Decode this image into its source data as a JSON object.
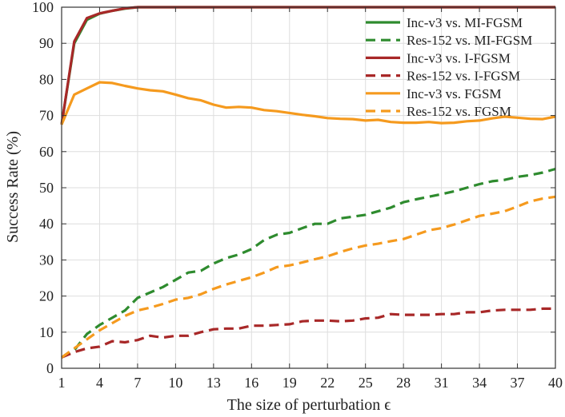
{
  "chart_data": {
    "type": "line",
    "xlabel": "The size of perturbation ϵ",
    "ylabel": "Success Rate (%)",
    "xlim": [
      1,
      40
    ],
    "ylim": [
      0,
      100
    ],
    "xticks": [
      1,
      4,
      7,
      10,
      13,
      16,
      19,
      22,
      25,
      28,
      31,
      34,
      37,
      40
    ],
    "yticks": [
      0,
      10,
      20,
      30,
      40,
      50,
      60,
      70,
      80,
      90,
      100
    ],
    "grid": true,
    "legend_position": "top-right",
    "x": [
      1,
      2,
      3,
      4,
      5,
      6,
      7,
      8,
      9,
      10,
      11,
      12,
      13,
      14,
      15,
      16,
      17,
      18,
      19,
      20,
      21,
      22,
      23,
      24,
      25,
      26,
      27,
      28,
      29,
      30,
      31,
      32,
      33,
      34,
      35,
      36,
      37,
      38,
      39,
      40
    ],
    "series": [
      {
        "name": "Inc-v3 vs. MI-FGSM",
        "color": "#2e8b2e",
        "dash": "solid",
        "values": [
          67.5,
          90,
          96.5,
          98.2,
          99,
          99.6,
          100,
          100,
          100,
          100,
          100,
          100,
          100,
          100,
          100,
          100,
          100,
          100,
          100,
          100,
          100,
          100,
          100,
          100,
          100,
          100,
          100,
          100,
          100,
          100,
          100,
          100,
          100,
          100,
          100,
          100,
          100,
          100,
          100,
          100
        ]
      },
      {
        "name": "Res-152 vs. MI-FGSM",
        "color": "#2e8b2e",
        "dash": "dashed",
        "values": [
          3,
          5,
          9.5,
          12,
          14,
          16,
          19.5,
          21,
          22.5,
          24.5,
          26.5,
          27,
          29,
          30.5,
          31.5,
          33,
          35.5,
          37,
          37.5,
          38.8,
          40,
          40,
          41.5,
          42,
          42.5,
          43.5,
          44.5,
          46,
          46.8,
          47.5,
          48.2,
          49,
          50,
          51,
          51.8,
          52.2,
          53,
          53.5,
          54.2,
          55.2
        ]
      },
      {
        "name": "Inc-v3 vs. I-FGSM",
        "color": "#a82828",
        "dash": "solid",
        "values": [
          67.5,
          90.5,
          97,
          98.3,
          99,
          99.7,
          100,
          100,
          100,
          100,
          100,
          100,
          100,
          100,
          100,
          100,
          100,
          100,
          100,
          100,
          100,
          100,
          100,
          100,
          100,
          100,
          100,
          100,
          100,
          100,
          100,
          100,
          100,
          100,
          100,
          100,
          100,
          100,
          100,
          100
        ]
      },
      {
        "name": "Res-152 vs. I-FGSM",
        "color": "#a82828",
        "dash": "dashed",
        "values": [
          3,
          4.5,
          5.5,
          6,
          7.5,
          7.2,
          7.8,
          9,
          8.5,
          9,
          9,
          10,
          10.8,
          11,
          11,
          11.8,
          11.8,
          12,
          12.2,
          13,
          13.2,
          13.2,
          13,
          13.2,
          13.8,
          14,
          15,
          14.8,
          14.8,
          14.8,
          15,
          15,
          15.5,
          15.5,
          16,
          16.2,
          16.2,
          16.2,
          16.5,
          16.5
        ]
      },
      {
        "name": "Inc-v3 vs. FGSM",
        "color": "#f59a1e",
        "dash": "solid",
        "values": [
          67.5,
          75.8,
          77.5,
          79.2,
          79,
          78.2,
          77.5,
          77,
          76.7,
          75.8,
          74.8,
          74.2,
          73,
          72.2,
          72.4,
          72.2,
          71.5,
          71.2,
          70.7,
          70.2,
          69.8,
          69.3,
          69.1,
          69,
          68.6,
          68.8,
          68.2,
          68,
          68,
          68.2,
          67.9,
          68,
          68.4,
          68.6,
          69.2,
          69.7,
          69.4,
          69.1,
          69,
          69.7
        ]
      },
      {
        "name": "Res-152 vs. FGSM",
        "color": "#f59a1e",
        "dash": "dashed",
        "values": [
          3,
          5.5,
          8,
          10.5,
          12.5,
          14.5,
          16,
          16.8,
          17.8,
          19,
          19.5,
          20.5,
          22,
          23.2,
          24.2,
          25.2,
          26.5,
          28,
          28.5,
          29.3,
          30.2,
          31,
          32.2,
          33.2,
          34,
          34.5,
          35.2,
          35.8,
          37,
          38.2,
          38.8,
          39.8,
          41,
          42.2,
          42.8,
          43.5,
          44.8,
          46.2,
          47,
          47.5
        ]
      }
    ]
  }
}
